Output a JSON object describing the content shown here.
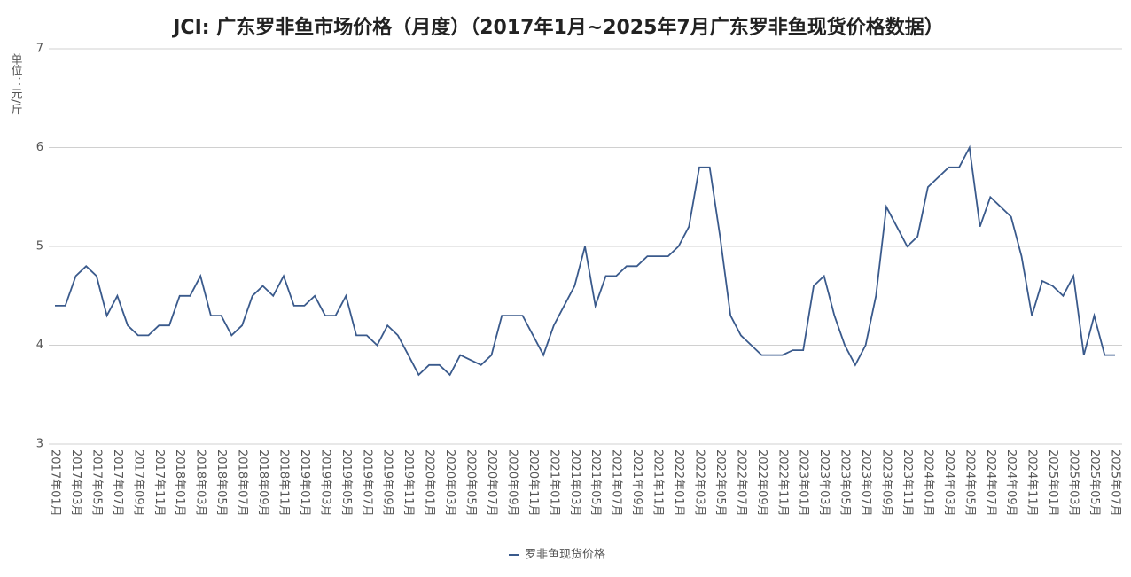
{
  "chart_data": {
    "type": "line",
    "title": "JCI: 广东罗非鱼市场价格（月度）（2017年1月~2025年7月广东罗非鱼现货价格数据）",
    "y_label": "单位：元/斤",
    "categories": [
      "2017年01月",
      null,
      "2017年03月",
      null,
      "2017年05月",
      null,
      "2017年07月",
      null,
      "2017年09月",
      null,
      "2017年11月",
      null,
      "2018年01月",
      null,
      "2018年03月",
      null,
      "2018年05月",
      null,
      "2018年07月",
      null,
      "2018年09月",
      null,
      "2018年11月",
      null,
      "2019年01月",
      null,
      "2019年03月",
      null,
      "2019年05月",
      null,
      "2019年07月",
      null,
      "2019年09月",
      null,
      "2019年11月",
      null,
      "2020年01月",
      null,
      "2020年03月",
      null,
      "2020年05月",
      null,
      "2020年07月",
      null,
      "2020年09月",
      null,
      "2020年11月",
      null,
      "2021年01月",
      null,
      "2021年03月",
      null,
      "2021年05月",
      null,
      "2021年07月",
      null,
      "2021年09月",
      null,
      "2021年11月",
      null,
      "2022年01月",
      null,
      "2022年03月",
      null,
      "2022年05月",
      null,
      "2022年07月",
      null,
      "2022年09月",
      null,
      "2022年11月",
      null,
      "2023年01月",
      null,
      "2023年03月",
      null,
      "2023年05月",
      null,
      "2023年07月",
      null,
      "2023年09月",
      null,
      "2023年11月",
      null,
      "2024年01月",
      null,
      "2024年03月",
      null,
      "2024年05月",
      null,
      "2024年07月",
      null,
      "2024年09月",
      null,
      "2024年11月",
      null,
      "2025年01月",
      null,
      "2025年03月",
      null,
      "2025年05月",
      null,
      "2025年07月"
    ],
    "series": [
      {
        "name": "罗非鱼现货价格",
        "color": "#3a5a8c",
        "values": [
          4.4,
          4.4,
          4.7,
          4.8,
          4.7,
          4.3,
          4.5,
          4.2,
          4.1,
          4.1,
          4.2,
          4.2,
          4.5,
          4.5,
          4.7,
          4.3,
          4.3,
          4.1,
          4.2,
          4.5,
          4.6,
          4.5,
          4.7,
          4.4,
          4.4,
          4.5,
          4.3,
          4.3,
          4.5,
          4.1,
          4.1,
          4.0,
          4.2,
          4.1,
          3.9,
          3.7,
          3.8,
          3.8,
          3.7,
          3.9,
          3.85,
          3.8,
          3.9,
          4.3,
          4.3,
          4.3,
          4.1,
          3.9,
          4.2,
          4.4,
          4.6,
          5.0,
          4.4,
          4.7,
          4.7,
          4.8,
          4.8,
          4.9,
          4.9,
          4.9,
          5.0,
          5.2,
          5.8,
          5.8,
          5.1,
          4.3,
          4.1,
          4.0,
          3.9,
          3.9,
          3.9,
          3.95,
          3.95,
          4.6,
          4.7,
          4.3,
          4.0,
          3.8,
          4.0,
          4.5,
          5.4,
          5.2,
          5.0,
          5.1,
          5.6,
          5.7,
          5.8,
          5.8,
          6.0,
          5.2,
          5.5,
          5.4,
          5.3,
          4.9,
          4.3,
          4.65,
          4.6,
          4.5,
          4.7,
          3.9,
          4.3,
          3.9,
          3.9
        ]
      }
    ],
    "ylim": [
      3,
      7
    ],
    "yticks": [
      3,
      4,
      5,
      6,
      7
    ],
    "grid": true,
    "legend": "bottom"
  }
}
